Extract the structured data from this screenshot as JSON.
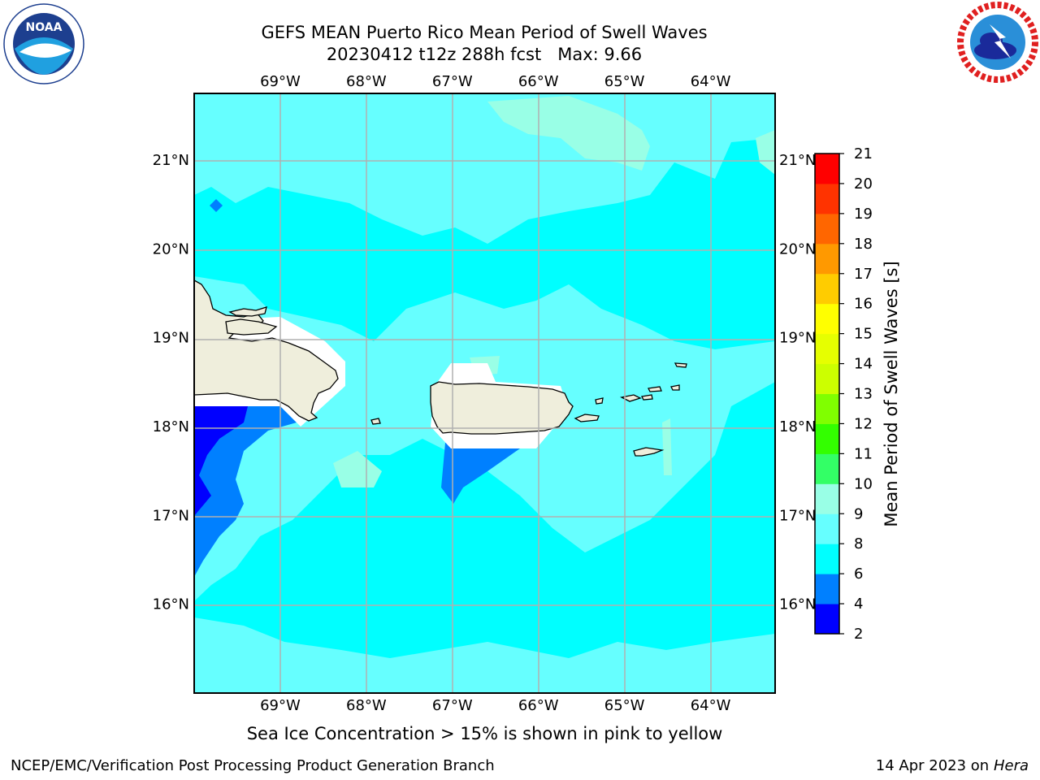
{
  "header": {
    "title_line1": "GEFS MEAN Puerto Rico Mean Period of Swell Waves",
    "title_line2": "20230412 t12z 288h fcst   Max: 9.66"
  },
  "logos": {
    "noaa": {
      "text": "NOAA",
      "icon": "noaa-logo-icon"
    },
    "nws": {
      "icon": "nws-logo-icon"
    }
  },
  "map": {
    "lon_ticks": [
      "69°W",
      "68°W",
      "67°W",
      "66°W",
      "65°W",
      "64°W"
    ],
    "lat_ticks": [
      "21°N",
      "20°N",
      "19°N",
      "18°N",
      "17°N",
      "16°N"
    ],
    "lon_values": [
      -69,
      -68,
      -67,
      -66,
      -65,
      -64
    ],
    "lat_values": [
      21,
      20,
      19,
      18,
      17,
      16
    ],
    "lon_range": [
      -70,
      -63.25
    ],
    "lat_range": [
      15,
      21.75
    ],
    "land_color": "#efeedc",
    "ocean_color": "#00ffff"
  },
  "colorbar": {
    "label": "Mean Period of Swell Waves [s]",
    "tick_labels": [
      "2",
      "4",
      "6",
      "8",
      "9",
      "10",
      "11",
      "12",
      "13",
      "14",
      "15",
      "16",
      "17",
      "18",
      "19",
      "20",
      "21"
    ],
    "levels": [
      2,
      4,
      6,
      8,
      9,
      10,
      11,
      12,
      13,
      14,
      15,
      16,
      17,
      18,
      19,
      20,
      21
    ],
    "colors": [
      "#0000ff",
      "#0080ff",
      "#00ffff",
      "#66ffff",
      "#99ffe6",
      "#33ff66",
      "#33ff00",
      "#80ff00",
      "#ccff00",
      "#e6ff00",
      "#ffff00",
      "#ffcc00",
      "#ff9900",
      "#ff6600",
      "#ff3300",
      "#ff0000"
    ]
  },
  "caption": "Sea Ice Concentration > 15% is shown in pink to yellow",
  "footer": {
    "org": "NCEP/EMC/Verification Post Processing Product Generation Branch",
    "date": "14 Apr 2023 on",
    "host": "Hera"
  }
}
